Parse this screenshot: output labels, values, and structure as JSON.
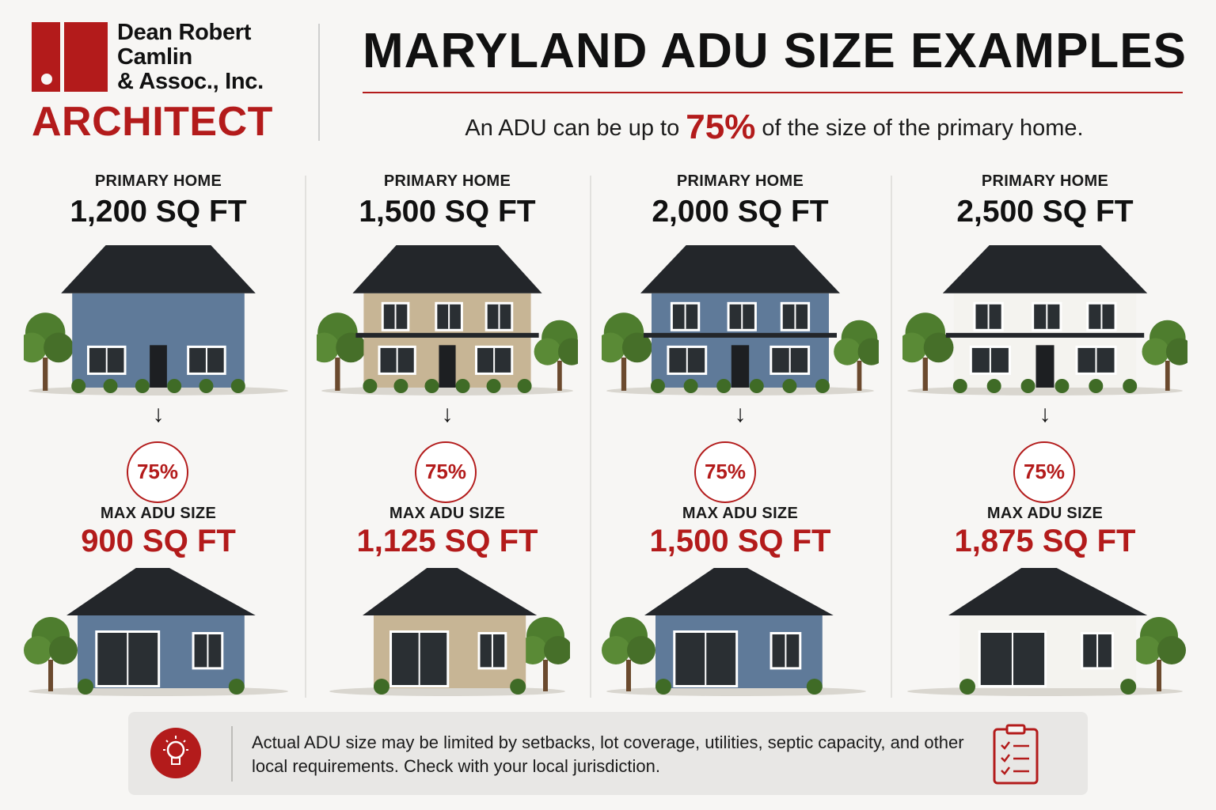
{
  "logo": {
    "name": "Dean Robert\nCamlin\n& Assoc., Inc.",
    "subtitle": "ARCHITECT",
    "brand_color": "#b31b1b"
  },
  "header": {
    "title": "MARYLAND ADU SIZE EXAMPLES",
    "subtitle_before": "An ADU can be up to",
    "subtitle_highlight": "75%",
    "subtitle_after": "of the size of the primary home."
  },
  "columns": [
    {
      "primary_label": "PRIMARY HOME",
      "primary_size": "1,200 SQ FT",
      "arrow": "↓",
      "percent": "75%",
      "adu_label": "MAX ADU SIZE",
      "adu_size": "900 SQ FT",
      "primary_siding": "#5f7a99",
      "adu_siding": "#5f7a99"
    },
    {
      "primary_label": "PRIMARY HOME",
      "primary_size": "1,500 SQ FT",
      "arrow": "↓",
      "percent": "75%",
      "adu_label": "MAX ADU SIZE",
      "adu_size": "1,125 SQ FT",
      "primary_siding": "#c7b595",
      "adu_siding": "#c7b595"
    },
    {
      "primary_label": "PRIMARY HOME",
      "primary_size": "2,000 SQ FT",
      "arrow": "↓",
      "percent": "75%",
      "adu_label": "MAX ADU SIZE",
      "adu_size": "1,500 SQ FT",
      "primary_siding": "#5f7a99",
      "adu_siding": "#5f7a99"
    },
    {
      "primary_label": "PRIMARY HOME",
      "primary_size": "2,500 SQ FT",
      "arrow": "↓",
      "percent": "75%",
      "adu_label": "MAX ADU SIZE",
      "adu_size": "1,875 SQ FT",
      "primary_siding": "#f4f3ef",
      "adu_siding": "#f4f3ef"
    }
  ],
  "note": {
    "text": "Actual ADU size may be limited by setbacks, lot coverage, utilities, septic capacity, and other local requirements. Check with your local jurisdiction.",
    "icon_left": "lightbulb-icon",
    "icon_right": "clipboard-checklist-icon"
  }
}
